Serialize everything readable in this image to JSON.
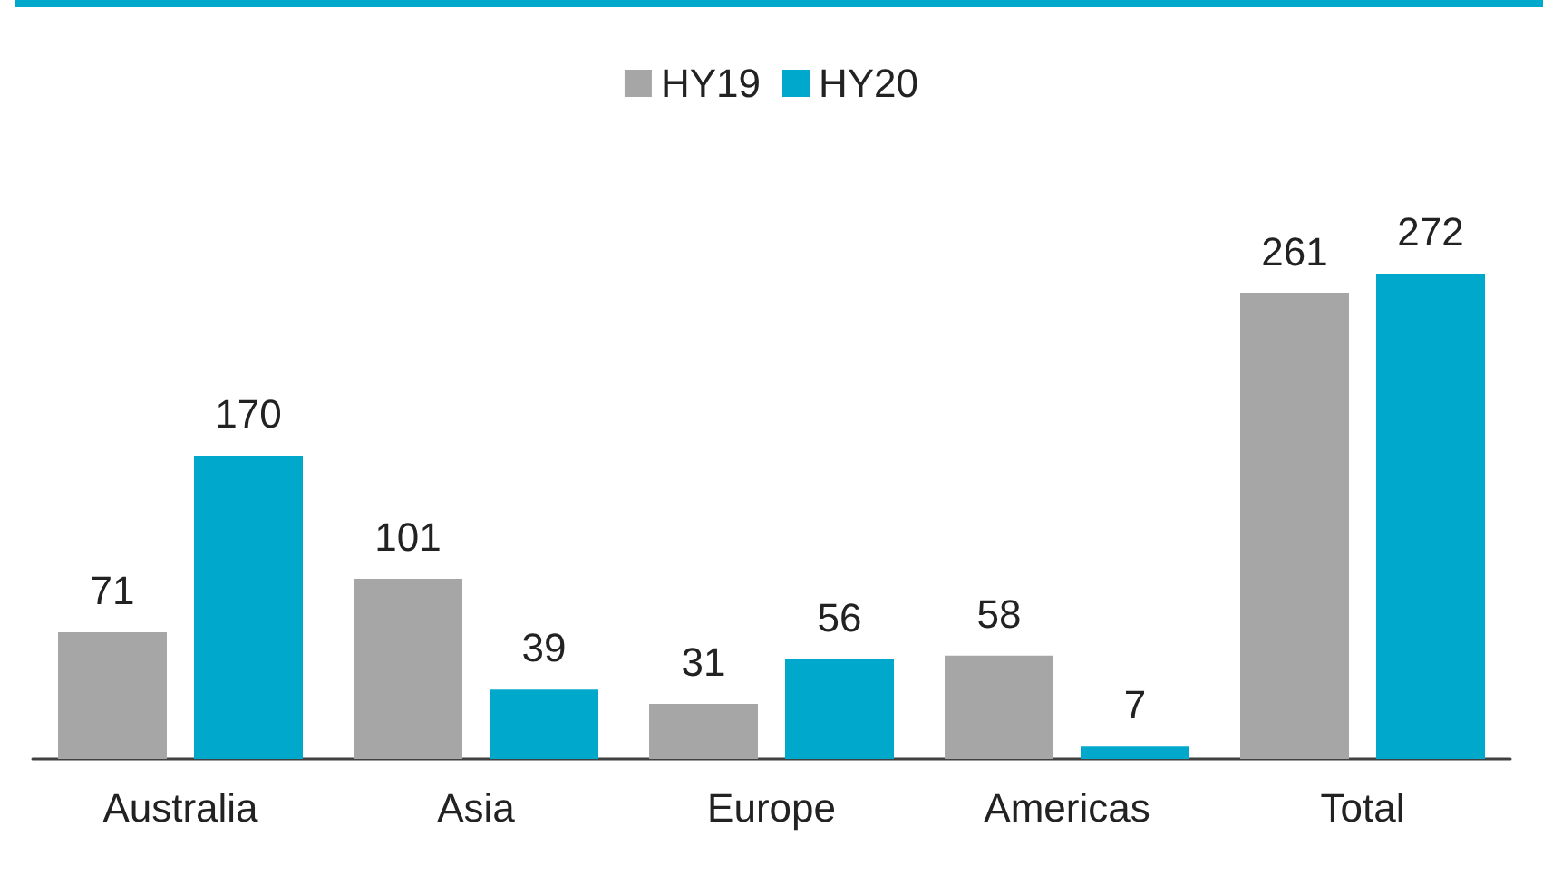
{
  "chart_data": {
    "type": "bar",
    "categories": [
      "Australia",
      "Asia",
      "Europe",
      "Americas",
      "Total"
    ],
    "series": [
      {
        "name": "HY19",
        "color": "#a6a6a6",
        "values": [
          71,
          101,
          31,
          58,
          261
        ]
      },
      {
        "name": "HY20",
        "color": "#00a8cc",
        "values": [
          170,
          39,
          56,
          7,
          272
        ]
      }
    ],
    "data_labels": true,
    "legend": "top"
  }
}
